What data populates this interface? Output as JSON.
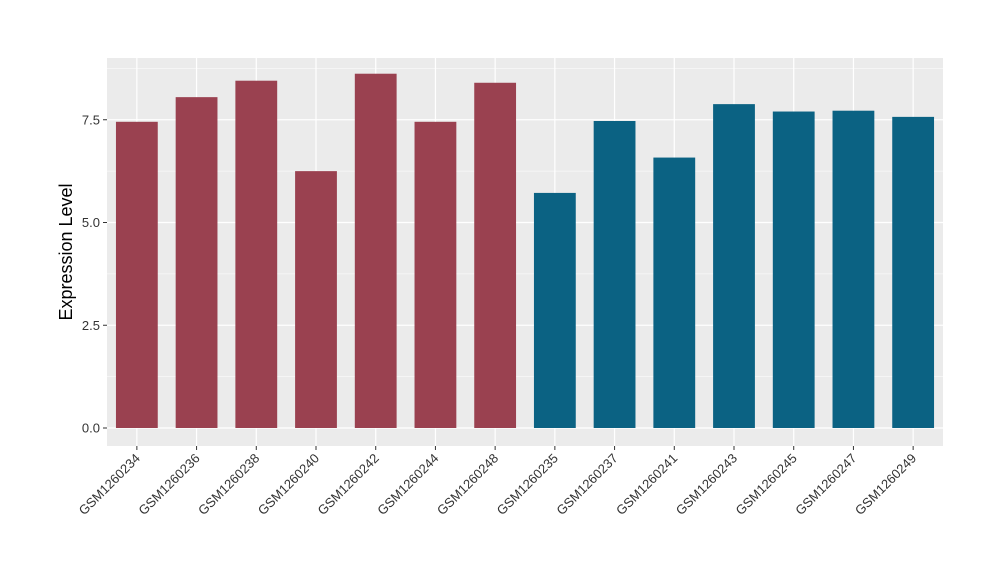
{
  "chart_data": {
    "type": "bar",
    "title": "",
    "xlabel": "",
    "ylabel": "Expression Level",
    "ylim": [
      0,
      8.95
    ],
    "yticks": [
      0.0,
      2.5,
      5.0,
      7.5
    ],
    "ytick_labels": [
      "0.0",
      "2.5",
      "5.0",
      "7.5"
    ],
    "grid": true,
    "legend": "none",
    "categories": [
      "GSM1260234",
      "GSM1260236",
      "GSM1260238",
      "GSM1260240",
      "GSM1260242",
      "GSM1260244",
      "GSM1260248",
      "GSM1260235",
      "GSM1260237",
      "GSM1260241",
      "GSM1260243",
      "GSM1260245",
      "GSM1260247",
      "GSM1260249"
    ],
    "values": [
      7.45,
      8.05,
      8.45,
      6.25,
      8.62,
      7.45,
      8.4,
      5.72,
      7.47,
      6.58,
      7.88,
      7.7,
      7.72,
      7.57
    ],
    "colors": [
      "#9a4150",
      "#9a4150",
      "#9a4150",
      "#9a4150",
      "#9a4150",
      "#9a4150",
      "#9a4150",
      "#0b6283",
      "#0b6283",
      "#0b6283",
      "#0b6283",
      "#0b6283",
      "#0b6283",
      "#0b6283"
    ],
    "panel_color": "#ebebeb",
    "grid_color": "#ffffff"
  }
}
